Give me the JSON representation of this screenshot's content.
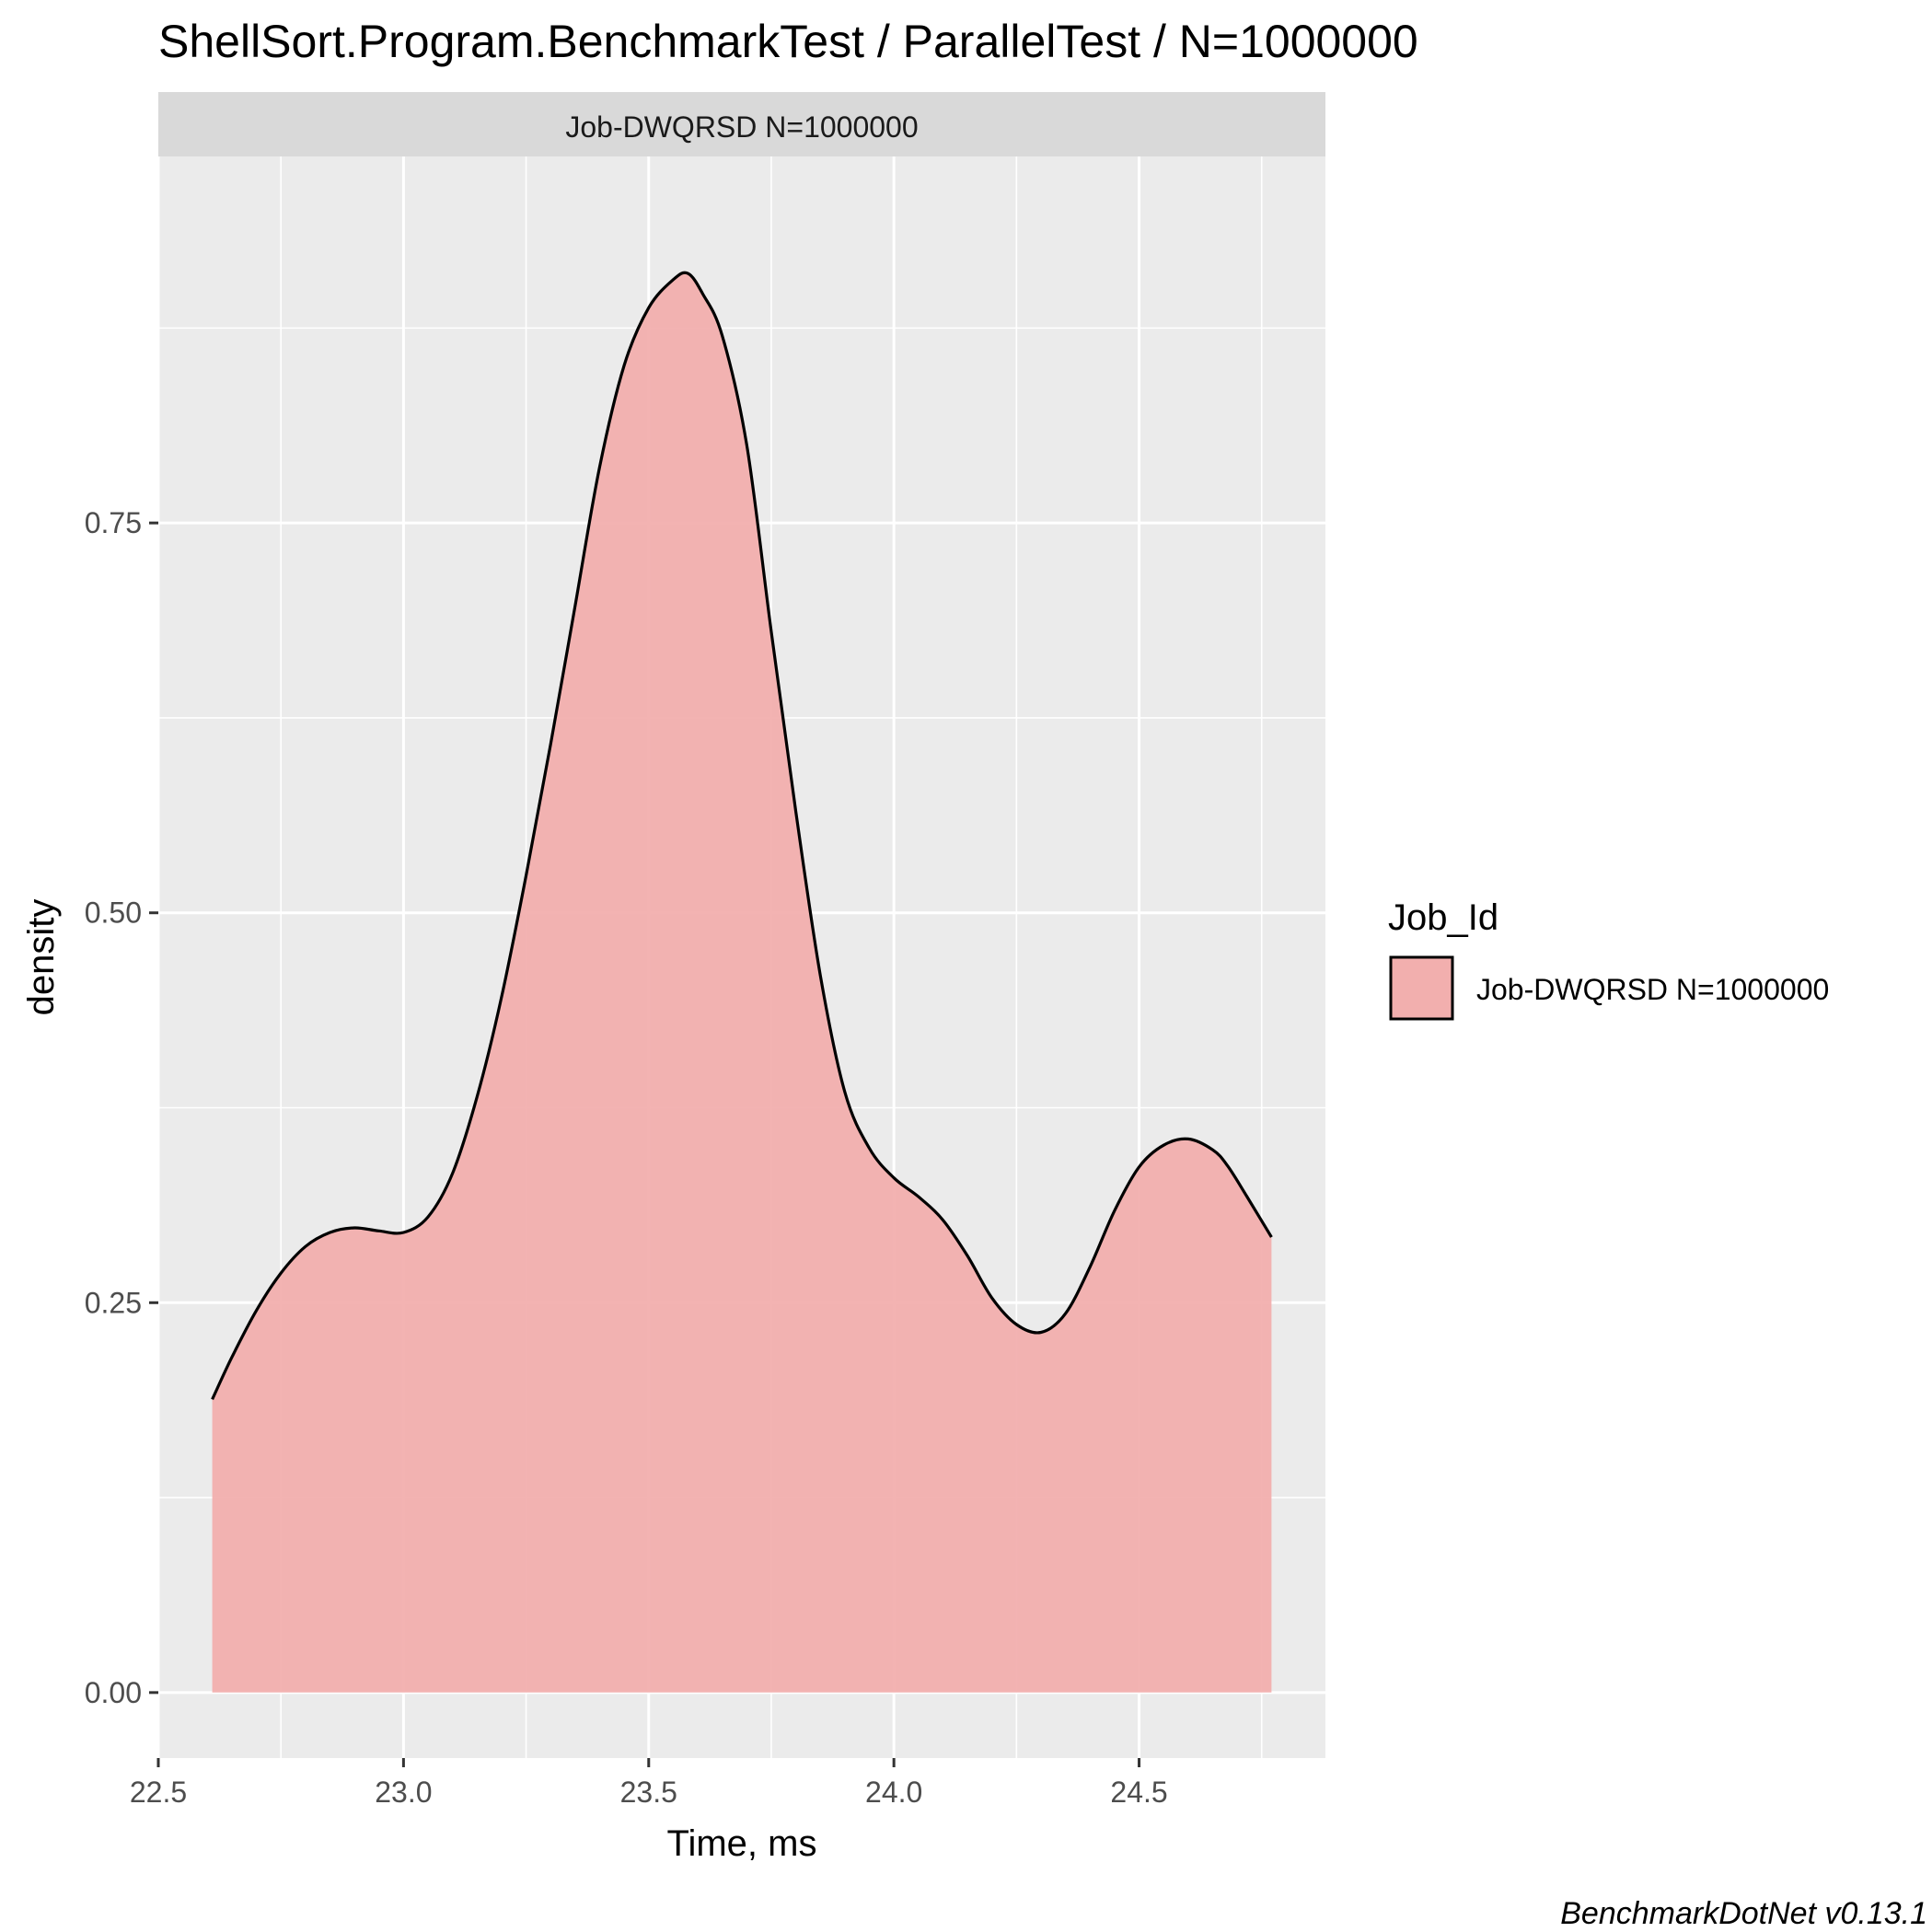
{
  "chart_data": {
    "type": "area",
    "title": "ShellSort.Program.BenchmarkTest / ParallelTest / N=1000000",
    "facet_label": "Job-DWQRSD N=1000000",
    "xlabel": "Time, ms",
    "ylabel": "density",
    "xlim": [
      22.5,
      24.88
    ],
    "ylim": [
      -0.042,
      0.985
    ],
    "x_ticks": [
      "22.5",
      "23.0",
      "23.5",
      "24.0",
      "24.5"
    ],
    "y_ticks": [
      "0.00",
      "0.25",
      "0.50",
      "0.75"
    ],
    "grid": true,
    "legend": {
      "title": "Job_Id",
      "position": "right",
      "entries": [
        "Job-DWQRSD N=1000000"
      ]
    },
    "series": [
      {
        "name": "Job-DWQRSD N=1000000",
        "fill_color": "#F2AFAE",
        "line_color": "#000000",
        "x": [
          22.61,
          22.65,
          22.7,
          22.75,
          22.8,
          22.85,
          22.9,
          22.95,
          23.0,
          23.05,
          23.1,
          23.15,
          23.2,
          23.25,
          23.3,
          23.35,
          23.4,
          23.45,
          23.5,
          23.55,
          23.58,
          23.61,
          23.65,
          23.7,
          23.75,
          23.8,
          23.85,
          23.9,
          23.95,
          24.0,
          24.05,
          24.1,
          24.15,
          24.2,
          24.25,
          24.3,
          24.35,
          24.4,
          24.45,
          24.5,
          24.55,
          24.6,
          24.65,
          24.68,
          24.72,
          24.77
        ],
        "y": [
          0.188,
          0.215,
          0.245,
          0.269,
          0.286,
          0.295,
          0.298,
          0.296,
          0.295,
          0.305,
          0.333,
          0.382,
          0.446,
          0.524,
          0.608,
          0.697,
          0.786,
          0.851,
          0.888,
          0.906,
          0.91,
          0.897,
          0.87,
          0.8,
          0.68,
          0.565,
          0.46,
          0.385,
          0.349,
          0.33,
          0.318,
          0.303,
          0.28,
          0.253,
          0.236,
          0.231,
          0.243,
          0.273,
          0.309,
          0.337,
          0.351,
          0.355,
          0.348,
          0.338,
          0.318,
          0.292
        ]
      }
    ]
  },
  "caption": "BenchmarkDotNet v0.13.1"
}
